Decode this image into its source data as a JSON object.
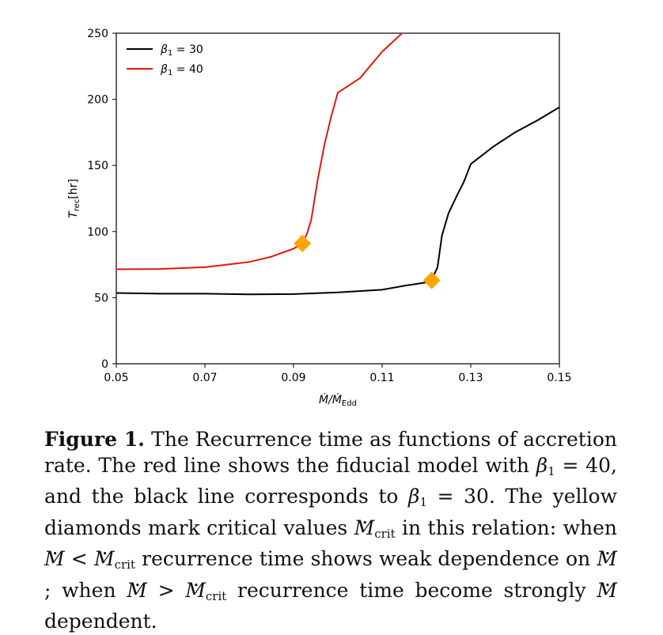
{
  "chart_data": {
    "type": "line",
    "xlabel": "Ṁ/Ṁ",
    "xlabel_sub": "Edd",
    "ylabel": "T",
    "ylabel_sub": "rec",
    "ylabel_unit": "[hr]",
    "xlim": [
      0.05,
      0.15
    ],
    "ylim": [
      0,
      250
    ],
    "x_ticks": [
      "0.05",
      "0.07",
      "0.09",
      "0.11",
      "0.13",
      "0.15"
    ],
    "y_ticks": [
      "0",
      "50",
      "100",
      "150",
      "200",
      "250"
    ],
    "grid": false,
    "legend_position": "top-left",
    "series": [
      {
        "name": "β1 = 30",
        "legend_label": "β",
        "legend_sub": "1",
        "legend_value": " = 30",
        "color": "#000000",
        "x": [
          0.05,
          0.06,
          0.07,
          0.08,
          0.09,
          0.1,
          0.11,
          0.115,
          0.121,
          0.1225,
          0.1235,
          0.125,
          0.127,
          0.1285,
          0.13,
          0.135,
          0.14,
          0.145,
          0.15
        ],
        "y": [
          53.5,
          53,
          53,
          52.5,
          52.7,
          54,
          56,
          59,
          62,
          73,
          97,
          114,
          128,
          138,
          151,
          164,
          175,
          184,
          194
        ]
      },
      {
        "name": "β1 = 40",
        "legend_label": "β",
        "legend_sub": "1",
        "legend_value": " = 40",
        "color": "#e0190e",
        "x": [
          0.05,
          0.06,
          0.07,
          0.075,
          0.08,
          0.085,
          0.09,
          0.092,
          0.093,
          0.094,
          0.0955,
          0.097,
          0.0985,
          0.1,
          0.105,
          0.11,
          0.1145
        ],
        "y": [
          71.5,
          71.7,
          73,
          75,
          77,
          81,
          87,
          91,
          98,
          109,
          140,
          166,
          187,
          205,
          216,
          236,
          250
        ]
      }
    ],
    "markers": [
      {
        "series": "β1 = 40",
        "x": 0.092,
        "y": 91,
        "color": "#ffa500",
        "shape": "diamond"
      },
      {
        "series": "β1 = 30",
        "x": 0.1212,
        "y": 63,
        "color": "#ffa500",
        "shape": "diamond"
      }
    ]
  },
  "caption": {
    "label": "Figure 1.",
    "p1": " The Recurrence time as functions of accretion rate. The red line shows the fiducial model with ",
    "beta40": "β",
    "beta40_sub": "1",
    "beta40_eq": " = 40, and the black line corresponds to ",
    "beta30": "β",
    "beta30_sub": "1",
    "beta30_eq": " = 30. The yellow diamonds mark critical values ",
    "m1": "M",
    "m1_sub": "crit",
    "p2": " in this relation: when ",
    "m2": "M",
    "lt": " < ",
    "m3": "M",
    "m3_sub": "crit",
    "p3": " recurrence time shows weak dependence on ",
    "m4": "M",
    "p4": "; when ",
    "m5": "M",
    "gt": " > ",
    "m6": "M",
    "m6_sub": "crit",
    "p5": " recurrence time become strongly ",
    "m7": "M",
    "p6": " dependent."
  }
}
